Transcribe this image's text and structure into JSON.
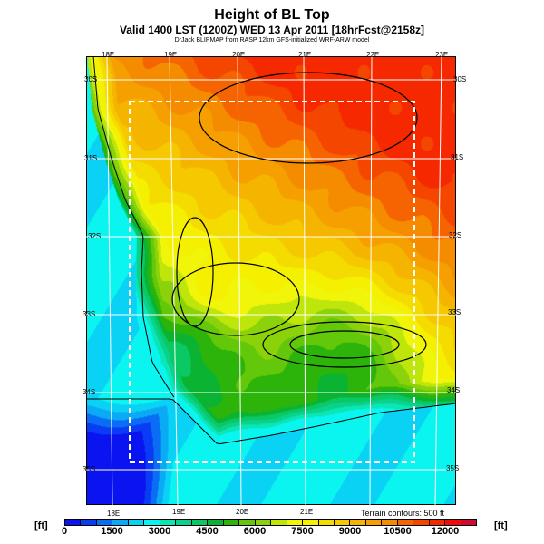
{
  "header": {
    "title": "Height of BL Top",
    "subtitle": "Valid 1400 LST (1200Z) WED 13 Apr 2011 [18hrFcst@2158z]",
    "credit": "DrJack BLIPMAP from RASP 12km GFS-initialized WRF-ARW model"
  },
  "map": {
    "lon_labels_top": [
      "18E",
      "19E",
      "20E",
      "21E",
      "22E",
      "23E"
    ],
    "lon_labels_bottom": [
      "18E",
      "19E",
      "20E",
      "21E"
    ],
    "lat_labels_left": [
      "30S",
      "31S",
      "32S",
      "33S",
      "34S",
      "35S"
    ],
    "lat_labels_right": [
      "30S",
      "31S",
      "32S",
      "33S",
      "34S",
      "35S"
    ],
    "terrain_note": "Terrain contours: 500 ft"
  },
  "colorbar": {
    "unit": "[ft]",
    "ticks": [
      "0",
      "1500",
      "3000",
      "4500",
      "6000",
      "7500",
      "9000",
      "10500",
      "12000"
    ],
    "min": 0,
    "max": 13000,
    "step": 500,
    "colors": [
      "#0a14f0",
      "#0a3cf5",
      "#0a6ef5",
      "#0aaaf5",
      "#0ad2f5",
      "#0af5f0",
      "#0ae6b4",
      "#0ad28c",
      "#0ac864",
      "#0ab432",
      "#2db40a",
      "#64c80a",
      "#8cd20a",
      "#bee60a",
      "#f0f50a",
      "#f5f000",
      "#f5dc00",
      "#f5c800",
      "#f5b400",
      "#f5a000",
      "#f58c00",
      "#f56400",
      "#f54600",
      "#f52800",
      "#f50a0a",
      "#d20a32"
    ]
  }
}
